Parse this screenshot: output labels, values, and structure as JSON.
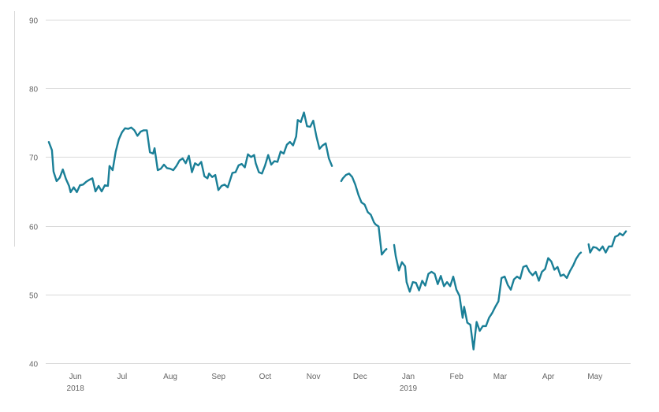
{
  "chart_data": {
    "type": "line",
    "title": "",
    "xlabel": "",
    "ylabel": "",
    "ylim": [
      40,
      90
    ],
    "yticks": [
      40,
      50,
      60,
      70,
      80,
      90
    ],
    "grid": true,
    "legend": "none",
    "colors": {
      "line": "#1a7f97",
      "grid": "#d9d9d9",
      "text": "#666666"
    },
    "xlim": [
      "2018-05-20",
      "2019-05-31"
    ],
    "xticks": [
      {
        "label": "Jun",
        "date": "2018-06-01",
        "year": "2018"
      },
      {
        "label": "Jul",
        "date": "2018-07-01"
      },
      {
        "label": "Aug",
        "date": "2018-08-01"
      },
      {
        "label": "Sep",
        "date": "2018-09-01"
      },
      {
        "label": "Oct",
        "date": "2018-10-01"
      },
      {
        "label": "Nov",
        "date": "2018-11-01"
      },
      {
        "label": "Dec",
        "date": "2018-12-01"
      },
      {
        "label": "Jan",
        "date": "2019-01-01",
        "year": "2019"
      },
      {
        "label": "Feb",
        "date": "2019-02-01"
      },
      {
        "label": "Mar",
        "date": "2019-03-01"
      },
      {
        "label": "Apr",
        "date": "2019-04-01"
      },
      {
        "label": "May",
        "date": "2019-05-01"
      }
    ],
    "series": [
      {
        "points": [
          [
            "2018-05-22",
            72.2
          ],
          [
            "2018-05-24",
            71.0
          ],
          [
            "2018-05-25",
            67.9
          ],
          [
            "2018-05-27",
            66.5
          ],
          [
            "2018-05-29",
            67.0
          ],
          [
            "2018-05-31",
            68.2
          ],
          [
            "2018-06-02",
            66.8
          ],
          [
            "2018-06-04",
            65.8
          ],
          [
            "2018-06-05",
            64.9
          ],
          [
            "2018-06-07",
            65.6
          ],
          [
            "2018-06-09",
            64.9
          ],
          [
            "2018-06-11",
            65.9
          ],
          [
            "2018-06-13",
            66.0
          ],
          [
            "2018-06-15",
            66.4
          ],
          [
            "2018-06-17",
            66.7
          ],
          [
            "2018-06-19",
            66.9
          ],
          [
            "2018-06-21",
            65.0
          ],
          [
            "2018-06-23",
            65.8
          ],
          [
            "2018-06-25",
            65.0
          ],
          [
            "2018-06-27",
            65.9
          ],
          [
            "2018-06-29",
            65.8
          ],
          [
            "2018-06-30",
            68.7
          ],
          [
            "2018-07-02",
            68.1
          ],
          [
            "2018-07-04",
            70.8
          ],
          [
            "2018-07-06",
            72.6
          ],
          [
            "2018-07-08",
            73.6
          ],
          [
            "2018-07-10",
            74.2
          ],
          [
            "2018-07-12",
            74.1
          ],
          [
            "2018-07-14",
            74.3
          ],
          [
            "2018-07-16",
            73.9
          ],
          [
            "2018-07-18",
            73.1
          ],
          [
            "2018-07-20",
            73.7
          ],
          [
            "2018-07-22",
            73.9
          ],
          [
            "2018-07-24",
            73.9
          ],
          [
            "2018-07-26",
            70.7
          ],
          [
            "2018-07-28",
            70.5
          ],
          [
            "2018-07-29",
            71.3
          ],
          [
            "2018-07-31",
            68.1
          ],
          [
            "2018-08-02",
            68.3
          ],
          [
            "2018-08-04",
            68.9
          ],
          [
            "2018-08-06",
            68.4
          ],
          [
            "2018-08-08",
            68.3
          ],
          [
            "2018-08-10",
            68.1
          ],
          [
            "2018-08-12",
            68.7
          ],
          [
            "2018-08-14",
            69.5
          ],
          [
            "2018-08-16",
            69.8
          ],
          [
            "2018-08-18",
            69.1
          ],
          [
            "2018-08-20",
            70.2
          ],
          [
            "2018-08-22",
            67.8
          ],
          [
            "2018-08-24",
            69.1
          ],
          [
            "2018-08-26",
            68.8
          ],
          [
            "2018-08-28",
            69.3
          ],
          [
            "2018-08-30",
            67.2
          ],
          [
            "2018-09-01",
            66.9
          ],
          [
            "2018-09-02",
            67.6
          ],
          [
            "2018-09-04",
            67.1
          ],
          [
            "2018-09-06",
            67.4
          ],
          [
            "2018-09-08",
            65.2
          ],
          [
            "2018-09-10",
            65.8
          ],
          [
            "2018-09-12",
            66.0
          ],
          [
            "2018-09-14",
            65.6
          ],
          [
            "2018-09-15",
            66.3
          ],
          [
            "2018-09-17",
            67.7
          ],
          [
            "2018-09-19",
            67.8
          ],
          [
            "2018-09-21",
            68.8
          ],
          [
            "2018-09-23",
            69.0
          ],
          [
            "2018-09-25",
            68.5
          ],
          [
            "2018-09-27",
            70.4
          ],
          [
            "2018-09-29",
            70.0
          ],
          [
            "2018-10-01",
            70.3
          ],
          [
            "2018-10-02",
            69.1
          ],
          [
            "2018-10-04",
            67.8
          ],
          [
            "2018-10-06",
            67.6
          ],
          [
            "2018-10-08",
            68.8
          ],
          [
            "2018-10-10",
            70.3
          ],
          [
            "2018-10-12",
            68.9
          ],
          [
            "2018-10-14",
            69.4
          ],
          [
            "2018-10-16",
            69.3
          ],
          [
            "2018-10-18",
            70.8
          ],
          [
            "2018-10-20",
            70.5
          ],
          [
            "2018-10-22",
            71.8
          ],
          [
            "2018-10-24",
            72.2
          ],
          [
            "2018-10-26",
            71.7
          ],
          [
            "2018-10-28",
            73.0
          ],
          [
            "2018-10-29",
            75.4
          ],
          [
            "2018-10-31",
            75.1
          ],
          [
            "2018-11-02",
            76.5
          ],
          [
            "2018-11-04",
            74.5
          ],
          [
            "2018-11-06",
            74.4
          ],
          [
            "2018-11-08",
            75.3
          ],
          [
            "2018-11-10",
            73.0
          ],
          [
            "2018-11-12",
            71.2
          ],
          [
            "2018-11-14",
            71.7
          ],
          [
            "2018-11-16",
            72.0
          ],
          [
            "2018-11-18",
            69.8
          ],
          [
            "2018-11-20",
            68.7
          ],
          null,
          [
            "2018-11-26",
            66.5
          ],
          [
            "2018-11-27",
            66.9
          ],
          [
            "2018-11-29",
            67.4
          ],
          [
            "2018-12-01",
            67.6
          ],
          [
            "2018-12-03",
            67.1
          ],
          [
            "2018-12-05",
            66.0
          ],
          [
            "2018-12-07",
            64.5
          ],
          [
            "2018-12-09",
            63.4
          ],
          [
            "2018-12-11",
            63.1
          ],
          [
            "2018-12-13",
            62.0
          ],
          [
            "2018-12-15",
            61.6
          ],
          [
            "2018-12-17",
            60.5
          ],
          [
            "2018-12-18",
            60.2
          ],
          [
            "2018-12-20",
            59.9
          ],
          [
            "2018-12-22",
            55.8
          ],
          [
            "2018-12-24",
            56.4
          ],
          [
            "2018-12-25",
            56.6
          ],
          null,
          [
            "2018-12-30",
            57.2
          ],
          [
            "2018-12-31",
            55.6
          ],
          [
            "2019-01-02",
            53.5
          ],
          [
            "2019-01-04",
            54.7
          ],
          [
            "2019-01-06",
            54.1
          ],
          [
            "2019-01-07",
            51.8
          ],
          [
            "2019-01-09",
            50.4
          ],
          [
            "2019-01-11",
            51.8
          ],
          [
            "2019-01-13",
            51.7
          ],
          [
            "2019-01-15",
            50.6
          ],
          [
            "2019-01-17",
            52.0
          ],
          [
            "2019-01-19",
            51.3
          ],
          [
            "2019-01-21",
            53.0
          ],
          [
            "2019-01-23",
            53.3
          ],
          [
            "2019-01-25",
            53.0
          ],
          [
            "2019-01-27",
            51.5
          ],
          [
            "2019-01-29",
            52.7
          ],
          [
            "2019-01-31",
            51.2
          ],
          [
            "2019-02-02",
            51.8
          ],
          [
            "2019-02-04",
            51.2
          ],
          [
            "2019-02-06",
            52.6
          ],
          [
            "2019-02-08",
            50.7
          ],
          [
            "2019-02-10",
            49.8
          ],
          [
            "2019-02-12",
            46.6
          ],
          [
            "2019-02-13",
            48.2
          ],
          [
            "2019-02-15",
            45.9
          ],
          [
            "2019-02-17",
            45.6
          ],
          [
            "2019-02-19",
            42.0
          ],
          [
            "2019-02-21",
            46.0
          ],
          [
            "2019-02-23",
            44.7
          ],
          [
            "2019-02-25",
            45.4
          ],
          [
            "2019-02-27",
            45.4
          ],
          [
            "2019-03-01",
            46.6
          ],
          [
            "2019-03-03",
            47.3
          ],
          [
            "2019-03-05",
            48.2
          ],
          [
            "2019-03-07",
            49.0
          ],
          [
            "2019-03-09",
            52.4
          ],
          [
            "2019-03-11",
            52.6
          ],
          [
            "2019-03-13",
            51.4
          ],
          [
            "2019-03-15",
            50.7
          ],
          [
            "2019-03-17",
            52.2
          ],
          [
            "2019-03-19",
            52.6
          ],
          [
            "2019-03-21",
            52.3
          ],
          [
            "2019-03-23",
            54.0
          ],
          [
            "2019-03-25",
            54.2
          ],
          [
            "2019-03-27",
            53.3
          ],
          [
            "2019-03-29",
            52.8
          ],
          [
            "2019-03-31",
            53.3
          ],
          [
            "2019-04-02",
            52.0
          ],
          [
            "2019-04-04",
            53.3
          ],
          [
            "2019-04-06",
            53.7
          ],
          [
            "2019-04-08",
            55.3
          ],
          [
            "2019-04-10",
            54.8
          ],
          [
            "2019-04-12",
            53.6
          ],
          [
            "2019-04-14",
            54.0
          ],
          [
            "2019-04-16",
            52.7
          ],
          [
            "2019-04-18",
            52.9
          ],
          [
            "2019-04-20",
            52.4
          ],
          [
            "2019-04-22",
            53.4
          ],
          [
            "2019-04-24",
            54.2
          ],
          [
            "2019-04-26",
            55.2
          ],
          [
            "2019-04-28",
            55.9
          ],
          [
            "2019-04-29",
            56.1
          ],
          null,
          [
            "2019-05-04",
            57.3
          ],
          [
            "2019-05-05",
            56.1
          ],
          [
            "2019-05-07",
            56.9
          ],
          [
            "2019-05-09",
            56.8
          ],
          [
            "2019-05-11",
            56.4
          ],
          [
            "2019-05-13",
            57.0
          ],
          [
            "2019-05-15",
            56.1
          ],
          [
            "2019-05-17",
            57.0
          ],
          [
            "2019-05-19",
            57.0
          ],
          [
            "2019-05-21",
            58.4
          ],
          [
            "2019-05-23",
            58.6
          ],
          [
            "2019-05-24",
            58.9
          ],
          [
            "2019-05-26",
            58.6
          ],
          [
            "2019-05-28",
            59.2
          ]
        ]
      }
    ]
  }
}
